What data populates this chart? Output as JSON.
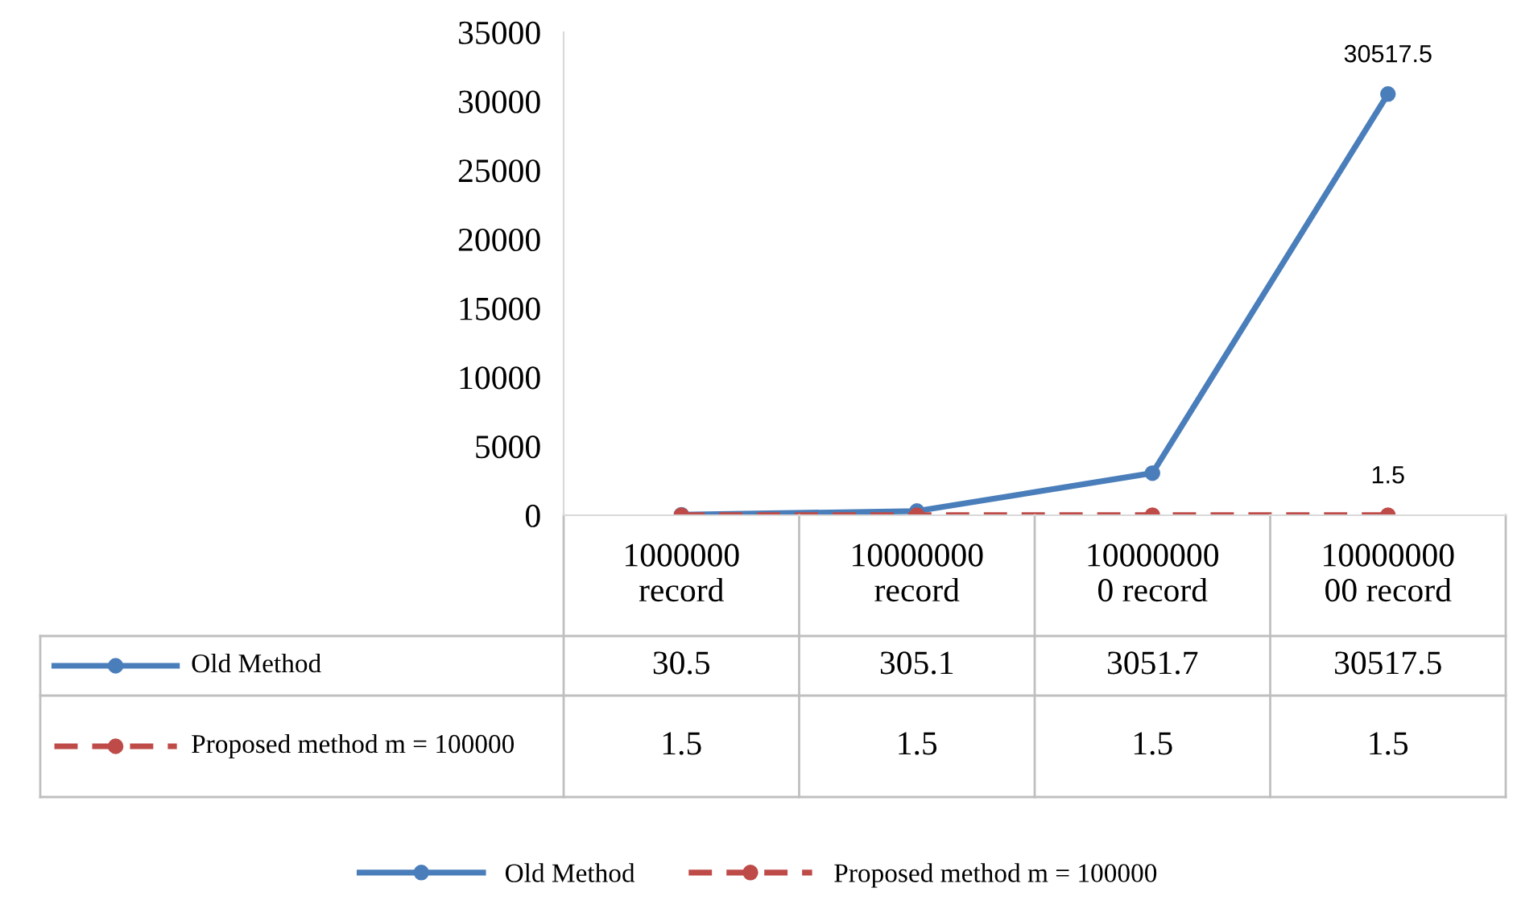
{
  "chart_data": {
    "type": "line",
    "categories": [
      "1000000\nrecord",
      "10000000\nrecord",
      "10000000\n0 record",
      "10000000\n00 record"
    ],
    "series": [
      {
        "name": "Old Method",
        "color": "#4a7ebb",
        "values": [
          30.5,
          305.1,
          3051.7,
          30517.5
        ],
        "line_style": "solid"
      },
      {
        "name": "Proposed method m = 100000",
        "color": "#be4b48",
        "values": [
          1.5,
          1.5,
          1.5,
          1.5
        ],
        "line_style": "dashed"
      }
    ],
    "ylim": [
      0,
      35000
    ],
    "yticks": [
      0,
      5000,
      10000,
      15000,
      20000,
      25000,
      30000,
      35000
    ],
    "annotations": [
      {
        "text": "30517.5",
        "x": "10000000\n00 record",
        "y": 30517.5
      },
      {
        "text": "1.5",
        "x": "10000000\n00 record",
        "y": 1.5
      }
    ],
    "marker": "circle",
    "data_labels": true,
    "legend": "bottom"
  }
}
